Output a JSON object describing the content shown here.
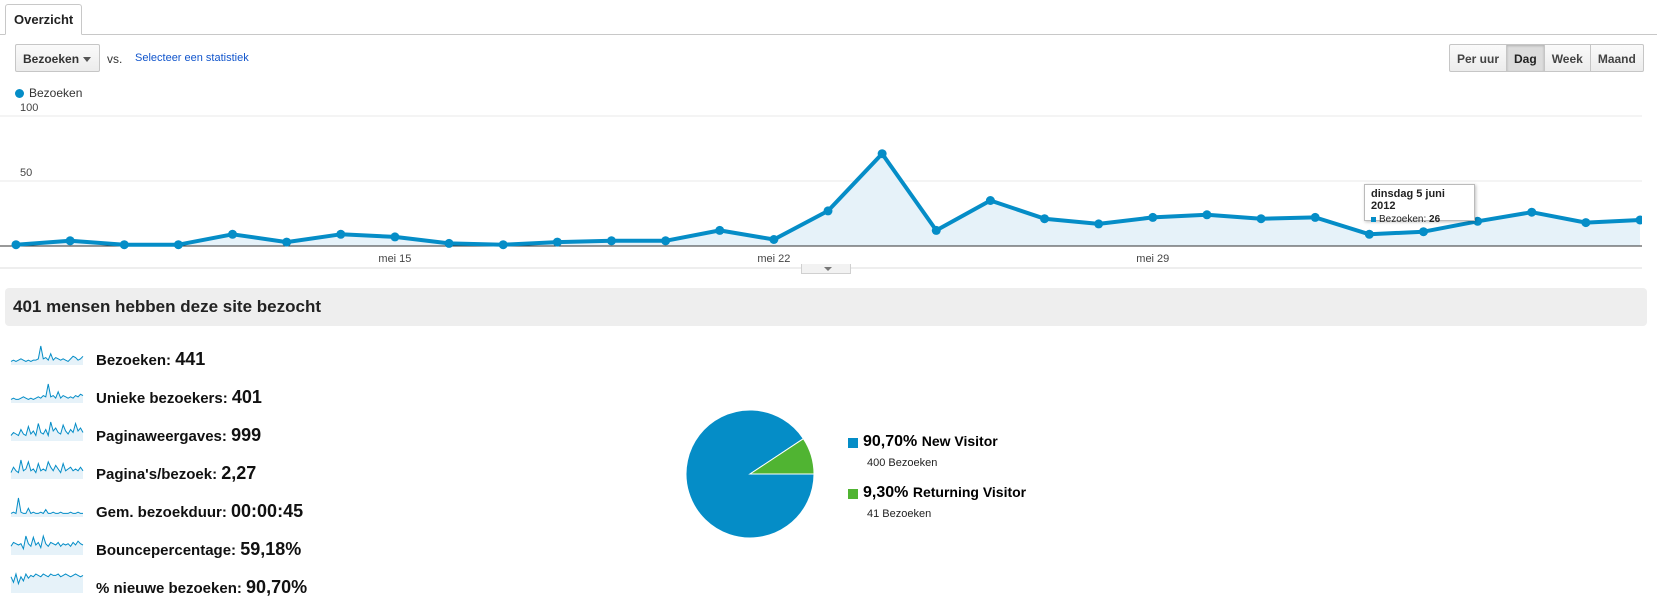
{
  "tabs": [
    {
      "label": "Overzicht"
    }
  ],
  "toolbar": {
    "metric_dropdown": "Bezoeken",
    "vs_label": "vs.",
    "select_link": "Selecteer een statistiek",
    "granularity": [
      "Per uur",
      "Dag",
      "Week",
      "Maand"
    ],
    "active_granularity": "Dag"
  },
  "colors": {
    "primary": "#058dc7",
    "secondary": "#50b432",
    "fill": "#e6f2f9"
  },
  "chart_data": {
    "type": "area",
    "title": "",
    "legend": "Bezoeken",
    "y_ticks": [
      "100",
      "50"
    ],
    "ylim": [
      0,
      100
    ],
    "x": [
      "2012-05-08",
      "2012-05-09",
      "2012-05-10",
      "2012-05-11",
      "2012-05-12",
      "2012-05-13",
      "2012-05-14",
      "2012-05-15",
      "2012-05-16",
      "2012-05-17",
      "2012-05-18",
      "2012-05-19",
      "2012-05-20",
      "2012-05-21",
      "2012-05-22",
      "2012-05-23",
      "2012-05-24",
      "2012-05-25",
      "2012-05-26",
      "2012-05-27",
      "2012-05-28",
      "2012-05-29",
      "2012-05-30",
      "2012-05-31",
      "2012-06-01",
      "2012-06-02",
      "2012-06-03",
      "2012-06-04",
      "2012-06-05",
      "2012-06-06",
      "2012-06-07"
    ],
    "values": [
      1,
      4,
      1,
      1,
      9,
      3,
      9,
      7,
      2,
      1,
      3,
      4,
      4,
      12,
      5,
      27,
      71,
      12,
      35,
      21,
      17,
      22,
      24,
      21,
      22,
      9,
      11,
      19,
      26,
      18,
      20
    ],
    "x_tick_labels": [
      {
        "index": 7,
        "label": "mei 15"
      },
      {
        "index": 14,
        "label": "mei 22"
      },
      {
        "index": 21,
        "label": "mei 29"
      }
    ],
    "series": [
      {
        "name": "Bezoeken"
      }
    ],
    "tooltip": {
      "date": "dinsdag 5 juni 2012",
      "series": "Bezoeken",
      "value": "26"
    }
  },
  "summary": {
    "title": "401 mensen hebben deze site bezocht"
  },
  "metrics": [
    {
      "label": "Bezoeken:",
      "value": "441",
      "spark": [
        2,
        3,
        2,
        3,
        4,
        3,
        2,
        3,
        2,
        3,
        3,
        4,
        14,
        4,
        5,
        3,
        8,
        3,
        5,
        4,
        3,
        4,
        3,
        2,
        4,
        6,
        5,
        3,
        4,
        6
      ]
    },
    {
      "label": "Unieke bezoekers:",
      "value": "401",
      "spark": [
        2,
        3,
        2,
        2,
        3,
        4,
        3,
        2,
        3,
        2,
        3,
        4,
        3,
        5,
        4,
        14,
        4,
        5,
        3,
        8,
        3,
        5,
        4,
        3,
        4,
        3,
        5,
        4,
        6,
        5
      ]
    },
    {
      "label": "Paginaweergaves:",
      "value": "999",
      "spark": [
        3,
        5,
        4,
        3,
        7,
        4,
        3,
        9,
        4,
        6,
        3,
        11,
        5,
        4,
        7,
        3,
        12,
        6,
        8,
        5,
        4,
        10,
        6,
        4,
        7,
        5,
        11,
        6,
        8,
        5
      ]
    },
    {
      "label": "Pagina's/bezoek:",
      "value": "2,27",
      "spark": [
        3,
        6,
        4,
        3,
        10,
        4,
        5,
        9,
        4,
        5,
        3,
        8,
        4,
        5,
        4,
        9,
        6,
        4,
        7,
        5,
        3,
        8,
        4,
        5,
        6,
        4,
        5,
        4,
        6,
        4
      ]
    },
    {
      "label": "Gem. bezoekduur:",
      "value": "00:00:45",
      "spark": [
        2,
        3,
        2,
        14,
        3,
        2,
        2,
        6,
        2,
        3,
        2,
        2,
        3,
        2,
        5,
        2,
        2,
        3,
        2,
        2,
        3,
        2,
        2,
        2,
        3,
        2,
        2,
        3,
        2,
        2
      ]
    },
    {
      "label": "Bouncepercentage:",
      "value": "59,18%",
      "spark": [
        6,
        9,
        8,
        7,
        8,
        4,
        14,
        8,
        6,
        13,
        7,
        9,
        5,
        14,
        8,
        6,
        9,
        8,
        7,
        9,
        6,
        8,
        7,
        8,
        6,
        9,
        7,
        10,
        8,
        7
      ]
    },
    {
      "label": "% nieuwe bezoeken:",
      "value": "90,70%",
      "spark": [
        11,
        7,
        13,
        6,
        11,
        8,
        13,
        10,
        12,
        11,
        13,
        12,
        11,
        13,
        12,
        11,
        13,
        12,
        12,
        13,
        11,
        12,
        13,
        12,
        11,
        12,
        13,
        12,
        11,
        12
      ]
    }
  ],
  "pie": [
    {
      "name": "New Visitor",
      "pct_label": "90,70%",
      "value": 90.7,
      "sub": "400 Bezoeken",
      "color": "#058dc7"
    },
    {
      "name": "Returning Visitor",
      "pct_label": "9,30%",
      "value": 9.3,
      "sub": "41 Bezoeken",
      "color": "#50b432"
    }
  ]
}
